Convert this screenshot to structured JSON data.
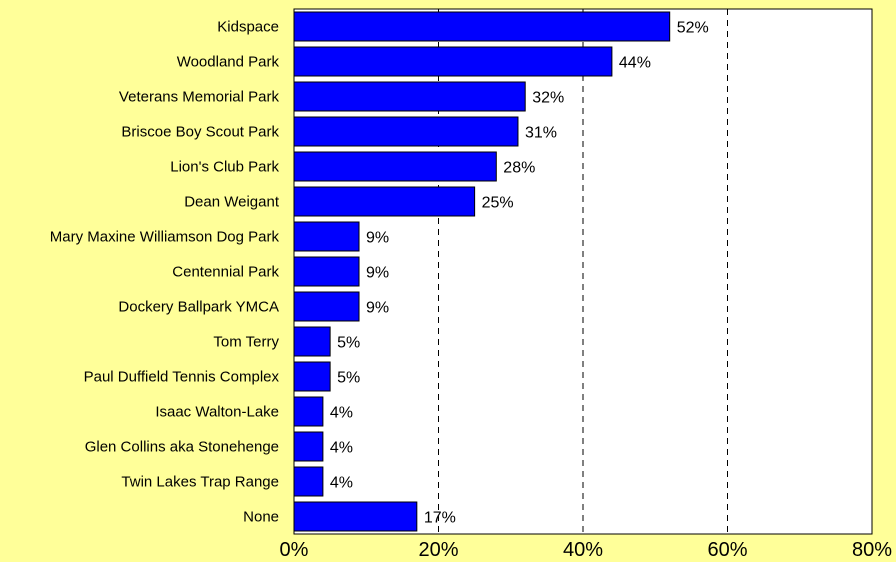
{
  "chart_data": {
    "type": "bar",
    "orientation": "horizontal",
    "categories": [
      "Kidspace",
      "Woodland Park",
      "Veterans Memorial Park",
      "Briscoe Boy Scout Park",
      "Lion's Club Park",
      "Dean Weigant",
      "Mary Maxine Williamson Dog Park",
      "Centennial Park",
      "Dockery Ballpark YMCA",
      "Tom Terry",
      "Paul Duffield Tennis Complex",
      "Isaac Walton-Lake",
      "Glen Collins aka Stonehenge",
      "Twin Lakes Trap Range",
      "None"
    ],
    "values": [
      52,
      44,
      32,
      31,
      28,
      25,
      9,
      9,
      9,
      5,
      5,
      4,
      4,
      4,
      17
    ],
    "value_labels": [
      "52%",
      "44%",
      "32%",
      "31%",
      "28%",
      "25%",
      "9%",
      "9%",
      "9%",
      "5%",
      "5%",
      "4%",
      "4%",
      "4%",
      "17%"
    ],
    "xlim": [
      0,
      80
    ],
    "x_ticks": [
      0,
      20,
      40,
      60,
      80
    ],
    "x_tick_labels": [
      "0%",
      "20%",
      "40%",
      "60%",
      "80%"
    ],
    "grid": "vertical dashed",
    "colors": {
      "bar": "#0000FF",
      "bar_border": "#000000",
      "page_background": "#FFFF99",
      "plot_background": "#FFFFFF",
      "grid": "#000000"
    }
  }
}
